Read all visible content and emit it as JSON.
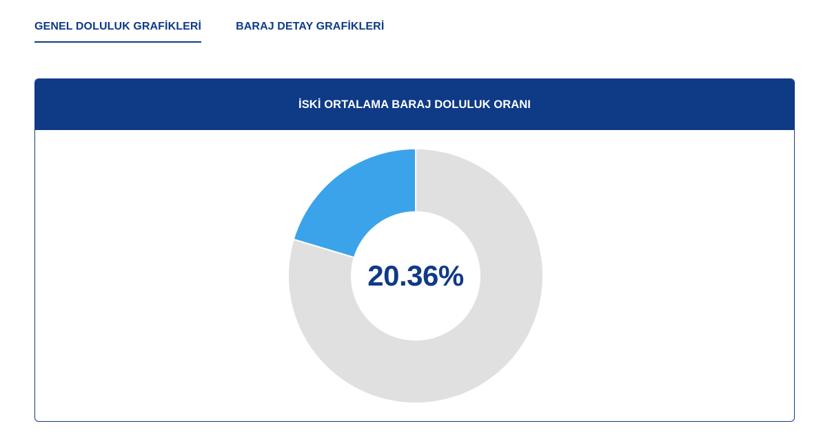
{
  "tabs": [
    {
      "label": "GENEL DOLULUK GRAFİKLERİ",
      "active": true
    },
    {
      "label": "BARAJ DETAY GRAFİKLERİ",
      "active": false
    }
  ],
  "card": {
    "title": "İSKİ ORTALAMA BARAJ DOLULUK ORANI"
  },
  "chart_data": {
    "type": "pie",
    "title": "İSKİ ORTALAMA BARAJ DOLULUK ORANI",
    "center_label": "20.36%",
    "slices": [
      {
        "value": 20.36,
        "color": "#3aa3ea"
      },
      {
        "value": 79.64,
        "color": "#e0e0e0"
      }
    ]
  },
  "colors": {
    "brand": "#0f3a86",
    "filled": "#3aa3ea",
    "empty": "#e0e0e0"
  }
}
